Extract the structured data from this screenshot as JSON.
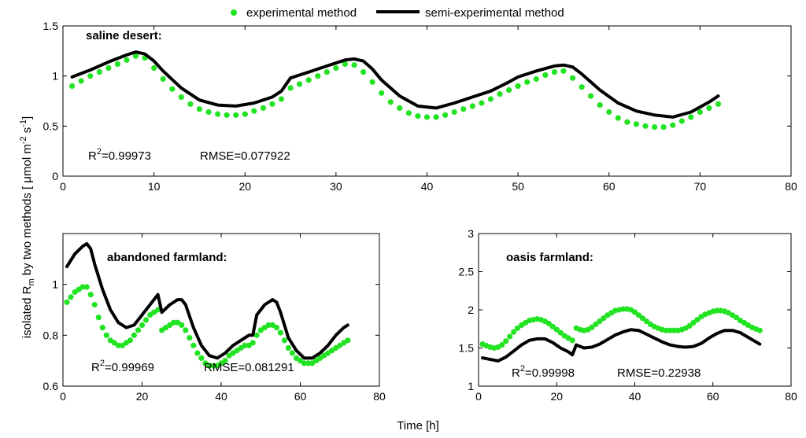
{
  "legend": {
    "experimental": "experimental method",
    "semi_experimental": "semi-experimental method"
  },
  "colors": {
    "experimental": "#22e322",
    "semi_experimental": "#000000"
  },
  "ylabel": {
    "main": "isolated R",
    "sub": "m",
    "rest": " by two methods [ μmol m",
    "sup1": "-2",
    "mid": " s",
    "sup2": "-1",
    "end": "]"
  },
  "xlabel": "Time [h]",
  "panels": [
    {
      "title": "saline desert:",
      "r2_label": "R",
      "r2_sup": "2",
      "r2_value": "=0.99973",
      "rmse": "RMSE=0.077922"
    },
    {
      "title": "abandoned farmland:",
      "r2_label": "R",
      "r2_sup": "2",
      "r2_value": "=0.99969",
      "rmse": "RMSE=0.081291"
    },
    {
      "title": "oasis farmland:",
      "r2_label": "R",
      "r2_sup": "2",
      "r2_value": "=0.99998",
      "rmse": "RMSE=0.22938"
    }
  ],
  "chart_data": [
    {
      "type": "line",
      "title": "saline desert:",
      "xlim": [
        0,
        80
      ],
      "ylim": [
        0,
        1.5
      ],
      "xticks": [
        0,
        10,
        20,
        30,
        40,
        50,
        60,
        70,
        80
      ],
      "yticks": [
        0,
        0.5,
        1,
        1.5
      ],
      "grid": false,
      "legend_position": "top",
      "series": [
        {
          "name": "experimental method",
          "style": "dots",
          "x": [
            1,
            2,
            3,
            4,
            5,
            6,
            7,
            8,
            9,
            10,
            11,
            12,
            13,
            14,
            15,
            16,
            17,
            18,
            19,
            20,
            21,
            22,
            23,
            24,
            25,
            26,
            27,
            28,
            29,
            30,
            31,
            32,
            33,
            34,
            35,
            36,
            37,
            38,
            39,
            40,
            41,
            42,
            43,
            44,
            45,
            46,
            47,
            48,
            49,
            50,
            51,
            52,
            53,
            54,
            55,
            56,
            57,
            58,
            59,
            60,
            61,
            62,
            63,
            64,
            65,
            66,
            67,
            68,
            69,
            70,
            71,
            72
          ],
          "y": [
            0.9,
            0.95,
            1.0,
            1.04,
            1.08,
            1.12,
            1.16,
            1.2,
            1.18,
            1.08,
            0.97,
            0.87,
            0.79,
            0.72,
            0.67,
            0.64,
            0.62,
            0.61,
            0.61,
            0.62,
            0.65,
            0.68,
            0.72,
            0.77,
            0.88,
            0.92,
            0.96,
            1.0,
            1.04,
            1.08,
            1.12,
            1.11,
            1.04,
            0.94,
            0.83,
            0.74,
            0.68,
            0.63,
            0.6,
            0.59,
            0.59,
            0.61,
            0.64,
            0.67,
            0.7,
            0.73,
            0.77,
            0.82,
            0.86,
            0.9,
            0.94,
            0.97,
            1.01,
            1.04,
            1.05,
            0.98,
            0.89,
            0.8,
            0.71,
            0.64,
            0.58,
            0.54,
            0.52,
            0.5,
            0.49,
            0.49,
            0.51,
            0.55,
            0.59,
            0.64,
            0.68,
            0.72
          ]
        },
        {
          "name": "semi-experimental method",
          "style": "line",
          "x": [
            1,
            3,
            5,
            7,
            8,
            9,
            10,
            11,
            13,
            15,
            17,
            19,
            21,
            23,
            24,
            25,
            27,
            29,
            31,
            32,
            33,
            34,
            35,
            37,
            39,
            41,
            43,
            45,
            47,
            49,
            50,
            52,
            54,
            55,
            56,
            57,
            59,
            61,
            63,
            65,
            67,
            69,
            71,
            72
          ],
          "y": [
            0.99,
            1.06,
            1.14,
            1.21,
            1.24,
            1.22,
            1.15,
            1.05,
            0.88,
            0.76,
            0.71,
            0.7,
            0.73,
            0.79,
            0.85,
            0.98,
            1.04,
            1.1,
            1.16,
            1.17,
            1.15,
            1.07,
            0.96,
            0.8,
            0.7,
            0.68,
            0.73,
            0.79,
            0.85,
            0.94,
            0.99,
            1.05,
            1.1,
            1.11,
            1.09,
            1.02,
            0.86,
            0.73,
            0.65,
            0.61,
            0.59,
            0.64,
            0.74,
            0.8
          ]
        }
      ]
    },
    {
      "type": "line",
      "title": "abandoned farmland:",
      "xlim": [
        0,
        80
      ],
      "ylim": [
        0.6,
        1.2
      ],
      "xticks": [
        0,
        20,
        40,
        60,
        80
      ],
      "yticks": [
        0.6,
        0.8,
        1
      ],
      "yticklabels": [
        "0.6",
        "0.8",
        "1"
      ],
      "grid": false,
      "series": [
        {
          "name": "experimental method",
          "style": "dots",
          "x": [
            1,
            2,
            3,
            4,
            5,
            6,
            7,
            8,
            9,
            10,
            11,
            12,
            13,
            14,
            15,
            16,
            17,
            18,
            19,
            20,
            21,
            22,
            23,
            24,
            25,
            26,
            27,
            28,
            29,
            30,
            31,
            32,
            33,
            34,
            35,
            36,
            37,
            38,
            39,
            40,
            41,
            42,
            43,
            44,
            45,
            46,
            47,
            48,
            49,
            50,
            51,
            52,
            53,
            54,
            55,
            56,
            57,
            58,
            59,
            60,
            61,
            62,
            63,
            64,
            65,
            66,
            67,
            68,
            69,
            70,
            71,
            72
          ],
          "y": [
            0.93,
            0.95,
            0.97,
            0.98,
            0.99,
            0.99,
            0.96,
            0.92,
            0.87,
            0.83,
            0.8,
            0.78,
            0.77,
            0.76,
            0.76,
            0.77,
            0.78,
            0.8,
            0.82,
            0.84,
            0.86,
            0.88,
            0.89,
            0.9,
            0.82,
            0.83,
            0.84,
            0.85,
            0.85,
            0.84,
            0.82,
            0.79,
            0.76,
            0.73,
            0.71,
            0.69,
            0.68,
            0.68,
            0.68,
            0.69,
            0.7,
            0.72,
            0.73,
            0.74,
            0.75,
            0.76,
            0.76,
            0.77,
            0.8,
            0.82,
            0.83,
            0.84,
            0.84,
            0.83,
            0.81,
            0.78,
            0.75,
            0.73,
            0.71,
            0.7,
            0.69,
            0.69,
            0.69,
            0.7,
            0.71,
            0.72,
            0.73,
            0.74,
            0.75,
            0.76,
            0.77,
            0.78
          ]
        },
        {
          "name": "semi-experimental method",
          "style": "line",
          "x": [
            1,
            3,
            5,
            6,
            7,
            8,
            10,
            12,
            14,
            16,
            18,
            20,
            22,
            24,
            25,
            27,
            29,
            30,
            31,
            33,
            35,
            37,
            39,
            41,
            43,
            45,
            47,
            48,
            49,
            51,
            53,
            54,
            55,
            57,
            59,
            61,
            63,
            65,
            67,
            69,
            71,
            72
          ],
          "y": [
            1.07,
            1.12,
            1.15,
            1.16,
            1.14,
            1.08,
            0.98,
            0.9,
            0.85,
            0.83,
            0.84,
            0.88,
            0.92,
            0.96,
            0.89,
            0.92,
            0.94,
            0.94,
            0.92,
            0.83,
            0.76,
            0.72,
            0.71,
            0.73,
            0.76,
            0.78,
            0.8,
            0.8,
            0.88,
            0.92,
            0.94,
            0.93,
            0.89,
            0.79,
            0.74,
            0.71,
            0.71,
            0.73,
            0.76,
            0.8,
            0.83,
            0.84
          ]
        }
      ]
    },
    {
      "type": "line",
      "title": "oasis farmland:",
      "xlim": [
        0,
        80
      ],
      "ylim": [
        1,
        3
      ],
      "xticks": [
        0,
        20,
        40,
        60,
        80
      ],
      "yticks": [
        1,
        1.5,
        2,
        2.5,
        3
      ],
      "yticklabels": [
        "1",
        "1.5",
        "2",
        "2.5",
        "3"
      ],
      "grid": false,
      "series": [
        {
          "name": "experimental method",
          "style": "dots",
          "x": [
            1,
            2,
            3,
            4,
            5,
            6,
            7,
            8,
            9,
            10,
            11,
            12,
            13,
            14,
            15,
            16,
            17,
            18,
            19,
            20,
            21,
            22,
            23,
            24,
            25,
            26,
            27,
            28,
            29,
            30,
            31,
            32,
            33,
            34,
            35,
            36,
            37,
            38,
            39,
            40,
            41,
            42,
            43,
            44,
            45,
            46,
            47,
            48,
            49,
            50,
            51,
            52,
            53,
            54,
            55,
            56,
            57,
            58,
            59,
            60,
            61,
            62,
            63,
            64,
            65,
            66,
            67,
            68,
            69,
            70,
            71,
            72
          ],
          "y": [
            1.55,
            1.53,
            1.51,
            1.5,
            1.51,
            1.54,
            1.59,
            1.65,
            1.71,
            1.76,
            1.8,
            1.83,
            1.86,
            1.87,
            1.88,
            1.87,
            1.85,
            1.82,
            1.78,
            1.74,
            1.7,
            1.66,
            1.63,
            1.6,
            1.76,
            1.74,
            1.73,
            1.74,
            1.77,
            1.81,
            1.85,
            1.89,
            1.93,
            1.96,
            1.99,
            2.0,
            2.01,
            2.01,
            2.0,
            1.97,
            1.93,
            1.89,
            1.85,
            1.81,
            1.78,
            1.76,
            1.74,
            1.73,
            1.73,
            1.73,
            1.73,
            1.74,
            1.76,
            1.79,
            1.83,
            1.87,
            1.91,
            1.94,
            1.96,
            1.98,
            1.99,
            1.99,
            1.98,
            1.96,
            1.93,
            1.9,
            1.86,
            1.83,
            1.8,
            1.77,
            1.75,
            1.73
          ]
        },
        {
          "name": "semi-experimental method",
          "style": "line",
          "x": [
            1,
            3,
            5,
            7,
            9,
            11,
            13,
            15,
            17,
            19,
            21,
            23,
            24,
            25,
            27,
            29,
            31,
            33,
            35,
            37,
            39,
            41,
            43,
            45,
            47,
            49,
            51,
            53,
            55,
            57,
            59,
            61,
            63,
            65,
            67,
            69,
            71,
            72
          ],
          "y": [
            1.37,
            1.35,
            1.33,
            1.38,
            1.46,
            1.54,
            1.6,
            1.62,
            1.62,
            1.57,
            1.5,
            1.45,
            1.41,
            1.54,
            1.5,
            1.51,
            1.55,
            1.61,
            1.67,
            1.71,
            1.74,
            1.73,
            1.68,
            1.63,
            1.58,
            1.54,
            1.52,
            1.51,
            1.52,
            1.56,
            1.63,
            1.69,
            1.73,
            1.73,
            1.7,
            1.64,
            1.58,
            1.55
          ]
        }
      ]
    }
  ]
}
